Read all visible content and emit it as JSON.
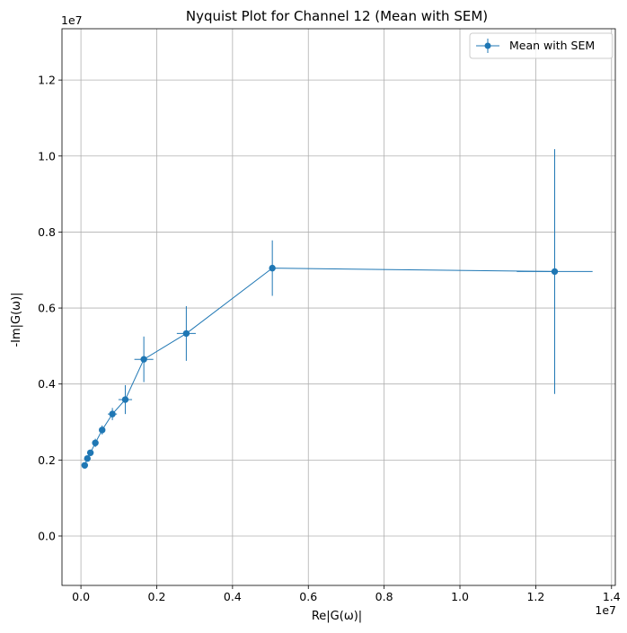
{
  "chart_data": {
    "type": "line",
    "title": "Nyquist Plot for Channel 12 (Mean with SEM)",
    "xlabel": "Re|G(ω)|",
    "ylabel": "-Im|G(ω)|",
    "x_offset_label": "1e7",
    "y_offset_label": "1e7",
    "xlim": [
      -0.05,
      1.41
    ],
    "ylim": [
      -0.13,
      1.335
    ],
    "x_ticks": [
      {
        "value": 0.0,
        "label": "0.0"
      },
      {
        "value": 0.2,
        "label": "0.2"
      },
      {
        "value": 0.4,
        "label": "0.4"
      },
      {
        "value": 0.6,
        "label": "0.6"
      },
      {
        "value": 0.8,
        "label": "0.8"
      },
      {
        "value": 1.0,
        "label": "1.0"
      },
      {
        "value": 1.2,
        "label": "1.2"
      },
      {
        "value": 1.4,
        "label": "1.4"
      }
    ],
    "y_ticks": [
      {
        "value": 0.0,
        "label": "0.0"
      },
      {
        "value": 0.2,
        "label": "0.2"
      },
      {
        "value": 0.4,
        "label": "0.4"
      },
      {
        "value": 0.6,
        "label": "0.6"
      },
      {
        "value": 0.8,
        "label": "0.8"
      },
      {
        "value": 1.0,
        "label": "1.0"
      },
      {
        "value": 1.2,
        "label": "1.2"
      }
    ],
    "grid": true,
    "legend_position": "top-right",
    "series": [
      {
        "name": "Mean with SEM",
        "color": "#1f77b4",
        "points": [
          {
            "x": 0.01,
            "y": 0.186,
            "xerr": 0.002,
            "yerr": 0.003
          },
          {
            "x": 0.017,
            "y": 0.204,
            "xerr": 0.002,
            "yerr": 0.005
          },
          {
            "x": 0.025,
            "y": 0.219,
            "xerr": 0.003,
            "yerr": 0.008
          },
          {
            "x": 0.038,
            "y": 0.245,
            "xerr": 0.005,
            "yerr": 0.011
          },
          {
            "x": 0.056,
            "y": 0.279,
            "xerr": 0.008,
            "yerr": 0.012
          },
          {
            "x": 0.083,
            "y": 0.321,
            "xerr": 0.012,
            "yerr": 0.016
          },
          {
            "x": 0.117,
            "y": 0.359,
            "xerr": 0.018,
            "yerr": 0.038
          },
          {
            "x": 0.166,
            "y": 0.465,
            "xerr": 0.025,
            "yerr": 0.06
          },
          {
            "x": 0.278,
            "y": 0.533,
            "xerr": 0.025,
            "yerr": 0.072
          },
          {
            "x": 0.505,
            "y": 0.705,
            "xerr": 0.005,
            "yerr": 0.073
          },
          {
            "x": 1.25,
            "y": 0.696,
            "xerr": 0.1,
            "yerr": 0.322
          }
        ]
      }
    ]
  }
}
